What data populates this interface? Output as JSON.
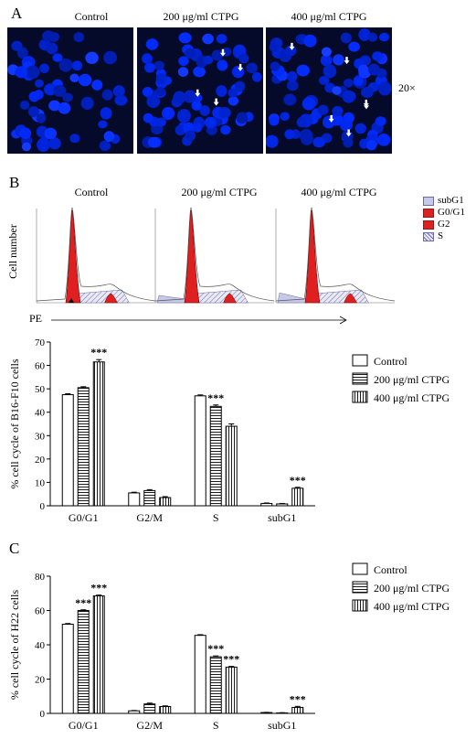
{
  "panel_a": {
    "letter": "A",
    "images": [
      {
        "label": "Control",
        "cells": 55,
        "arrows": 0
      },
      {
        "label": "200 μg/ml CTPG",
        "cells": 70,
        "arrows": 4
      },
      {
        "label": "400 μg/ml CTPG",
        "cells": 80,
        "arrows": 6
      }
    ],
    "magnification": "20×",
    "colors": {
      "background": "#050a2a",
      "nucleus": "#2b4cff",
      "arrow": "#ffffff"
    }
  },
  "panel_b": {
    "letter": "B",
    "histogram_titles": [
      "Control",
      "200 μg/ml CTPG",
      "400 μg/ml CTPG"
    ],
    "ylabel": "Cell number",
    "xlabel": "PE",
    "legend": [
      {
        "name": "subG1",
        "color": "#c7c9e8"
      },
      {
        "name": "G0/G1",
        "color": "#e02020"
      },
      {
        "name": "G2",
        "color": "#e02020"
      },
      {
        "name": "S",
        "color": "hatch"
      }
    ]
  },
  "panel_c": {
    "letter": "C"
  },
  "chart_data": [
    {
      "type": "bar",
      "ylabel": "% cell cycle of B16-F10 cells",
      "categories": [
        "G0/G1",
        "G2/M",
        "S",
        "subG1"
      ],
      "ylim": [
        0,
        70
      ],
      "yticks": [
        0,
        10,
        20,
        30,
        40,
        50,
        60,
        70
      ],
      "series": [
        {
          "name": "Control",
          "values": [
            47.5,
            5.5,
            47,
            1
          ],
          "errors": [
            0.4,
            0.3,
            0.4,
            0.2
          ]
        },
        {
          "name": "200 μg/ml CTPG",
          "values": [
            50.5,
            6.5,
            42.5,
            0.8
          ],
          "errors": [
            0.4,
            0.4,
            0.6,
            0.2
          ]
        },
        {
          "name": "400 μg/ml CTPG",
          "values": [
            61.5,
            3.5,
            34,
            7.5
          ],
          "errors": [
            1.0,
            0.4,
            1.0,
            0.4
          ]
        }
      ],
      "significance": [
        {
          "category": "G0/G1",
          "series": 2,
          "label": "***"
        },
        {
          "category": "S",
          "series": 1,
          "label": "***"
        },
        {
          "category": "subG1",
          "series": 2,
          "label": "***"
        }
      ],
      "legend_position": "right",
      "grid": false
    },
    {
      "type": "bar",
      "ylabel": "% cell cycle of H22 cells",
      "categories": [
        "G0/G1",
        "G2/M",
        "S",
        "subG1"
      ],
      "ylim": [
        0,
        80
      ],
      "yticks": [
        0,
        20,
        40,
        60,
        80
      ],
      "series": [
        {
          "name": "Control",
          "values": [
            52,
            1.5,
            45.5,
            0.5
          ],
          "errors": [
            0.4,
            0.2,
            0.4,
            0.1
          ]
        },
        {
          "name": "200 μg/ml CTPG",
          "values": [
            60,
            5.5,
            33,
            0.3
          ],
          "errors": [
            0.4,
            0.5,
            0.5,
            0.1
          ]
        },
        {
          "name": "400 μg/ml CTPG",
          "values": [
            68.5,
            4,
            27,
            3.5
          ],
          "errors": [
            0.5,
            0.4,
            0.4,
            0.6
          ]
        }
      ],
      "significance": [
        {
          "category": "G0/G1",
          "series": 1,
          "label": "***"
        },
        {
          "category": "G0/G1",
          "series": 2,
          "label": "***"
        },
        {
          "category": "S",
          "series": 1,
          "label": "***"
        },
        {
          "category": "S",
          "series": 2,
          "label": "***"
        },
        {
          "category": "subG1",
          "series": 2,
          "label": "***"
        }
      ],
      "legend_position": "right",
      "grid": false
    }
  ]
}
